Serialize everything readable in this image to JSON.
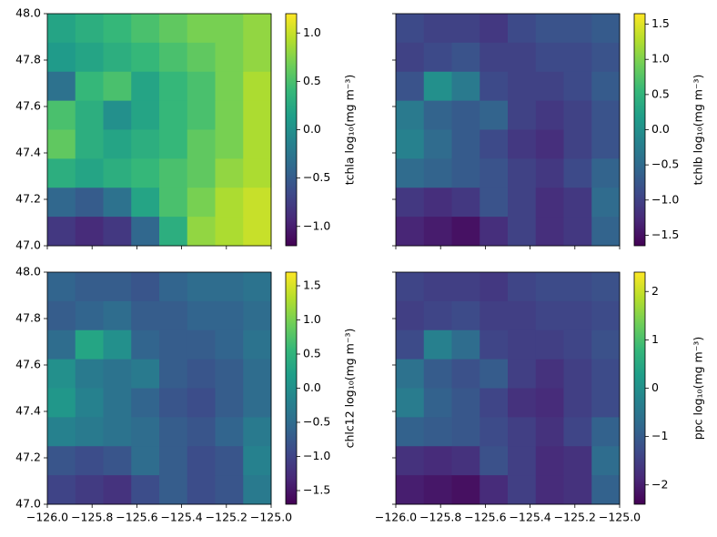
{
  "chart_data": [
    {
      "type": "heatmap",
      "colormap": "viridis",
      "colorbar_label": "tchla log₁₀(mg m⁻³)",
      "xlim": [
        -126.0,
        -125.0
      ],
      "ylim": [
        47.0,
        48.0
      ],
      "zlim": [
        -1.2,
        1.2
      ],
      "x_tick_labels_visible": false,
      "y_tick_labels_visible": true,
      "xticks": [
        {
          "value": -126.0,
          "label": "−126.0"
        },
        {
          "value": -125.8,
          "label": "−125.8"
        },
        {
          "value": -125.6,
          "label": "−125.6"
        },
        {
          "value": -125.4,
          "label": "−125.4"
        },
        {
          "value": -125.2,
          "label": "−125.2"
        },
        {
          "value": -125.0,
          "label": "−125.0"
        }
      ],
      "yticks": [
        {
          "value": 47.0,
          "label": "47.0"
        },
        47.2,
        47.4,
        47.6,
        47.8,
        {
          "value": 48.0,
          "label": "48.0"
        }
      ],
      "zticks": [
        {
          "value": -1.0,
          "label": "−1.0"
        },
        {
          "value": -0.5,
          "label": "−0.5"
        },
        {
          "value": 0.0,
          "label": "0.0"
        },
        0.5,
        {
          "value": 1.0,
          "label": "1.0"
        }
      ],
      "z": [
        [
          0.2,
          0.3,
          0.4,
          0.5,
          0.6,
          0.7,
          0.7,
          0.8
        ],
        [
          0.1,
          0.2,
          0.3,
          0.4,
          0.5,
          0.6,
          0.7,
          0.8
        ],
        [
          -0.3,
          0.4,
          0.5,
          0.2,
          0.4,
          0.5,
          0.7,
          0.9
        ],
        [
          0.5,
          0.3,
          0.0,
          0.2,
          0.4,
          0.5,
          0.7,
          0.9
        ],
        [
          0.6,
          0.3,
          0.2,
          0.3,
          0.4,
          0.6,
          0.7,
          0.9
        ],
        [
          0.3,
          0.2,
          0.3,
          0.4,
          0.5,
          0.6,
          0.8,
          0.9
        ],
        [
          -0.4,
          -0.5,
          -0.3,
          0.2,
          0.5,
          0.7,
          0.9,
          1.0
        ],
        [
          -0.8,
          -0.9,
          -0.8,
          -0.4,
          0.3,
          0.8,
          0.9,
          1.0
        ]
      ]
    },
    {
      "type": "heatmap",
      "colormap": "viridis",
      "colorbar_label": "tchlb log₁₀(mg m⁻³)",
      "xlim": [
        -126.0,
        -125.0
      ],
      "ylim": [
        47.0,
        48.0
      ],
      "zlim": [
        -1.65,
        1.65
      ],
      "x_tick_labels_visible": false,
      "y_tick_labels_visible": false,
      "xticks": [
        {
          "value": -126.0,
          "label": "−126.0"
        },
        {
          "value": -125.8,
          "label": "−125.8"
        },
        {
          "value": -125.6,
          "label": "−125.6"
        },
        {
          "value": -125.4,
          "label": "−125.4"
        },
        {
          "value": -125.2,
          "label": "−125.2"
        },
        {
          "value": -125.0,
          "label": "−125.0"
        }
      ],
      "yticks": [
        {
          "value": 47.0,
          "label": "47.0"
        },
        47.2,
        47.4,
        47.6,
        47.8,
        {
          "value": 48.0,
          "label": "48.0"
        }
      ],
      "zticks": [
        {
          "value": -1.5,
          "label": "−1.5"
        },
        {
          "value": -1.0,
          "label": "−1.0"
        },
        {
          "value": -0.5,
          "label": "−0.5"
        },
        {
          "value": 0.0,
          "label": "0.0"
        },
        0.5,
        {
          "value": 1.0,
          "label": "1.0"
        },
        1.5
      ],
      "z": [
        [
          -0.9,
          -1.0,
          -1.0,
          -1.1,
          -0.9,
          -0.8,
          -0.8,
          -0.7
        ],
        [
          -1.0,
          -0.9,
          -0.8,
          -1.0,
          -1.0,
          -0.9,
          -0.9,
          -0.8
        ],
        [
          -0.8,
          0.0,
          -0.3,
          -0.9,
          -1.0,
          -1.0,
          -0.9,
          -0.7
        ],
        [
          -0.3,
          -0.6,
          -0.7,
          -0.6,
          -1.0,
          -1.1,
          -1.0,
          -0.8
        ],
        [
          -0.2,
          -0.5,
          -0.7,
          -0.9,
          -1.1,
          -1.2,
          -1.0,
          -0.8
        ],
        [
          -0.5,
          -0.6,
          -0.7,
          -0.8,
          -1.0,
          -1.1,
          -0.9,
          -0.6
        ],
        [
          -1.1,
          -1.2,
          -1.1,
          -0.8,
          -1.0,
          -1.2,
          -1.1,
          -0.5
        ],
        [
          -1.3,
          -1.4,
          -1.5,
          -1.2,
          -1.0,
          -1.2,
          -1.1,
          -0.6
        ]
      ]
    },
    {
      "type": "heatmap",
      "colormap": "viridis",
      "colorbar_label": "chlc12 log₁₀(mg m⁻³)",
      "xlim": [
        -126.0,
        -125.0
      ],
      "ylim": [
        47.0,
        48.0
      ],
      "zlim": [
        -1.7,
        1.7
      ],
      "x_tick_labels_visible": true,
      "y_tick_labels_visible": true,
      "xticks": [
        {
          "value": -126.0,
          "label": "−126.0"
        },
        {
          "value": -125.8,
          "label": "−125.8"
        },
        {
          "value": -125.6,
          "label": "−125.6"
        },
        {
          "value": -125.4,
          "label": "−125.4"
        },
        {
          "value": -125.2,
          "label": "−125.2"
        },
        {
          "value": -125.0,
          "label": "−125.0"
        }
      ],
      "yticks": [
        {
          "value": 47.0,
          "label": "47.0"
        },
        47.2,
        47.4,
        47.6,
        47.8,
        {
          "value": 48.0,
          "label": "48.0"
        }
      ],
      "zticks": [
        {
          "value": -1.5,
          "label": "−1.5"
        },
        {
          "value": -1.0,
          "label": "−1.0"
        },
        {
          "value": -0.5,
          "label": "−0.5"
        },
        {
          "value": 0.0,
          "label": "0.0"
        },
        0.5,
        {
          "value": 1.0,
          "label": "1.0"
        },
        1.5
      ],
      "z": [
        [
          -0.6,
          -0.7,
          -0.7,
          -0.8,
          -0.6,
          -0.5,
          -0.5,
          -0.4
        ],
        [
          -0.7,
          -0.6,
          -0.5,
          -0.7,
          -0.7,
          -0.6,
          -0.6,
          -0.5
        ],
        [
          -0.5,
          0.3,
          0.0,
          -0.6,
          -0.7,
          -0.7,
          -0.6,
          -0.4
        ],
        [
          0.0,
          -0.3,
          -0.4,
          -0.3,
          -0.7,
          -0.8,
          -0.7,
          -0.5
        ],
        [
          0.1,
          -0.2,
          -0.4,
          -0.6,
          -0.8,
          -0.9,
          -0.7,
          -0.5
        ],
        [
          -0.2,
          -0.3,
          -0.4,
          -0.5,
          -0.7,
          -0.8,
          -0.6,
          -0.3
        ],
        [
          -0.8,
          -0.9,
          -0.8,
          -0.5,
          -0.7,
          -0.9,
          -0.8,
          -0.2
        ],
        [
          -1.0,
          -1.1,
          -1.2,
          -0.9,
          -0.7,
          -0.9,
          -0.8,
          -0.3
        ]
      ]
    },
    {
      "type": "heatmap",
      "colormap": "viridis",
      "colorbar_label": "ppc log₁₀(mg m⁻³)",
      "xlim": [
        -126.0,
        -125.0
      ],
      "ylim": [
        47.0,
        48.0
      ],
      "zlim": [
        -2.4,
        2.4
      ],
      "x_tick_labels_visible": true,
      "y_tick_labels_visible": false,
      "xticks": [
        {
          "value": -126.0,
          "label": "−126.0"
        },
        {
          "value": -125.8,
          "label": "−125.8"
        },
        {
          "value": -125.6,
          "label": "−125.6"
        },
        {
          "value": -125.4,
          "label": "−125.4"
        },
        {
          "value": -125.2,
          "label": "−125.2"
        },
        {
          "value": -125.0,
          "label": "−125.0"
        }
      ],
      "yticks": [
        {
          "value": 47.0,
          "label": "47.0"
        },
        47.2,
        47.4,
        47.6,
        47.8,
        {
          "value": 48.0,
          "label": "48.0"
        }
      ],
      "zticks": [
        {
          "value": -2,
          "label": "−2"
        },
        {
          "value": -1,
          "label": "−1"
        },
        0,
        1,
        2
      ],
      "z": [
        [
          -1.4,
          -1.5,
          -1.5,
          -1.6,
          -1.4,
          -1.3,
          -1.3,
          -1.2
        ],
        [
          -1.5,
          -1.4,
          -1.3,
          -1.5,
          -1.5,
          -1.4,
          -1.4,
          -1.3
        ],
        [
          -1.3,
          -0.3,
          -0.7,
          -1.4,
          -1.5,
          -1.5,
          -1.4,
          -1.2
        ],
        [
          -0.6,
          -1.0,
          -1.2,
          -1.0,
          -1.5,
          -1.7,
          -1.5,
          -1.3
        ],
        [
          -0.4,
          -0.9,
          -1.1,
          -1.4,
          -1.7,
          -1.8,
          -1.5,
          -1.3
        ],
        [
          -0.9,
          -1.0,
          -1.1,
          -1.3,
          -1.5,
          -1.7,
          -1.4,
          -0.9
        ],
        [
          -1.7,
          -1.8,
          -1.7,
          -1.2,
          -1.5,
          -1.8,
          -1.7,
          -0.7
        ],
        [
          -2.0,
          -2.1,
          -2.2,
          -1.8,
          -1.5,
          -1.8,
          -1.7,
          -0.9
        ]
      ]
    }
  ]
}
